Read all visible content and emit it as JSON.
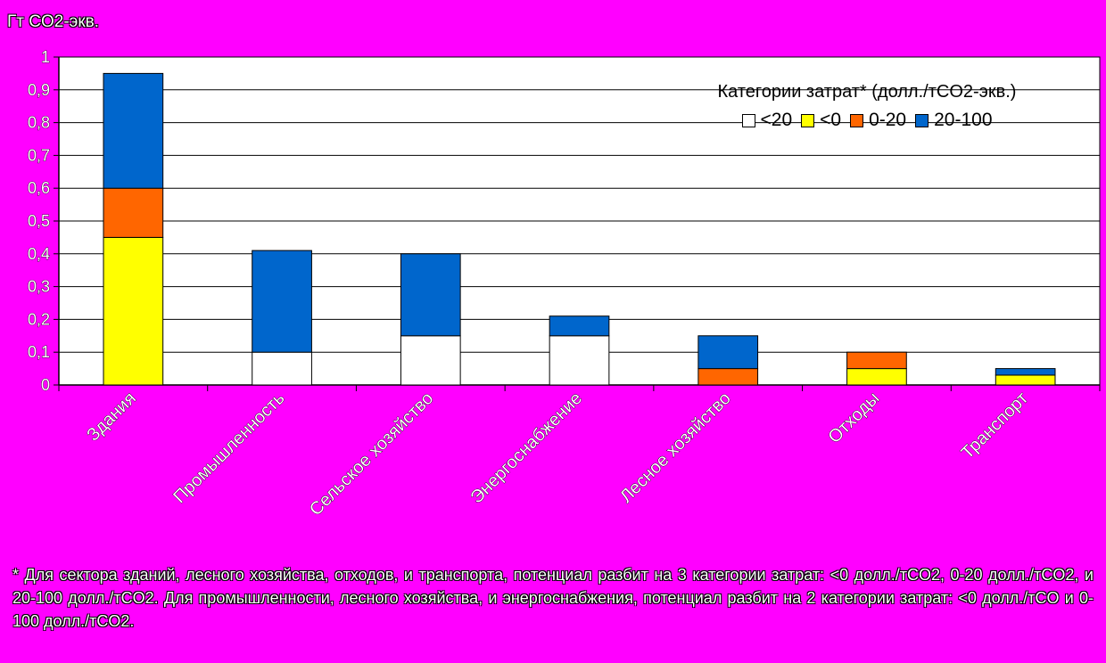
{
  "unit_label": "Гт CO2-экв.",
  "footnote": "* Для сектора зданий, лесного хозяйства, отходов, и транспорта, потенциал разбит на 3 категории затрат: <0 долл./тCO2, 0-20 долл./тCO2, и 20-100 долл./тCO2. Для промышленности, лесного хозяйства, и энергоснабжения, потенциал разбит на 2 категории затрат: <0 долл./тCO и 0-100 долл./тCO2.",
  "legend": {
    "title": "Категории затрат* (долл./тCO2-экв.)",
    "items": [
      {
        "label": "<20",
        "color": "#FFFFFF"
      },
      {
        "label": "<0",
        "color": "#FFFF00"
      },
      {
        "label": "0-20",
        "color": "#FF6600"
      },
      {
        "label": "20-100",
        "color": "#0066CC"
      }
    ]
  },
  "chart_data": {
    "type": "bar",
    "stacked": true,
    "categories": [
      "Здания",
      "Промышленность",
      "Сельское хозяйство",
      "Энергоснабжение",
      "Лесное хозяйство",
      "Отходы",
      "Транспорт"
    ],
    "ylim": [
      0,
      1
    ],
    "yticks": [
      "0",
      "0,1",
      "0,2",
      "0,3",
      "0,4",
      "0,5",
      "0,6",
      "0,7",
      "0,8",
      "0,9",
      "1"
    ],
    "ytick_values": [
      0,
      0.1,
      0.2,
      0.3,
      0.4,
      0.5,
      0.6,
      0.7,
      0.8,
      0.9,
      1
    ],
    "ylabel": "Гт CO2-экв.",
    "grid": true,
    "legend_position": "top-right",
    "series": [
      {
        "name": "<20",
        "color": "#FFFFFF",
        "values": [
          0,
          0.1,
          0.15,
          0.15,
          0,
          0,
          0
        ]
      },
      {
        "name": "<0",
        "color": "#FFFF00",
        "values": [
          0.45,
          0,
          0,
          0,
          0,
          0.05,
          0.03
        ]
      },
      {
        "name": "0-20",
        "color": "#FF6600",
        "values": [
          0.15,
          0,
          0,
          0,
          0.05,
          0.05,
          0
        ]
      },
      {
        "name": "20-100",
        "color": "#0066CC",
        "values": [
          0.35,
          0.31,
          0.25,
          0.06,
          0.1,
          0,
          0.02
        ]
      }
    ]
  }
}
